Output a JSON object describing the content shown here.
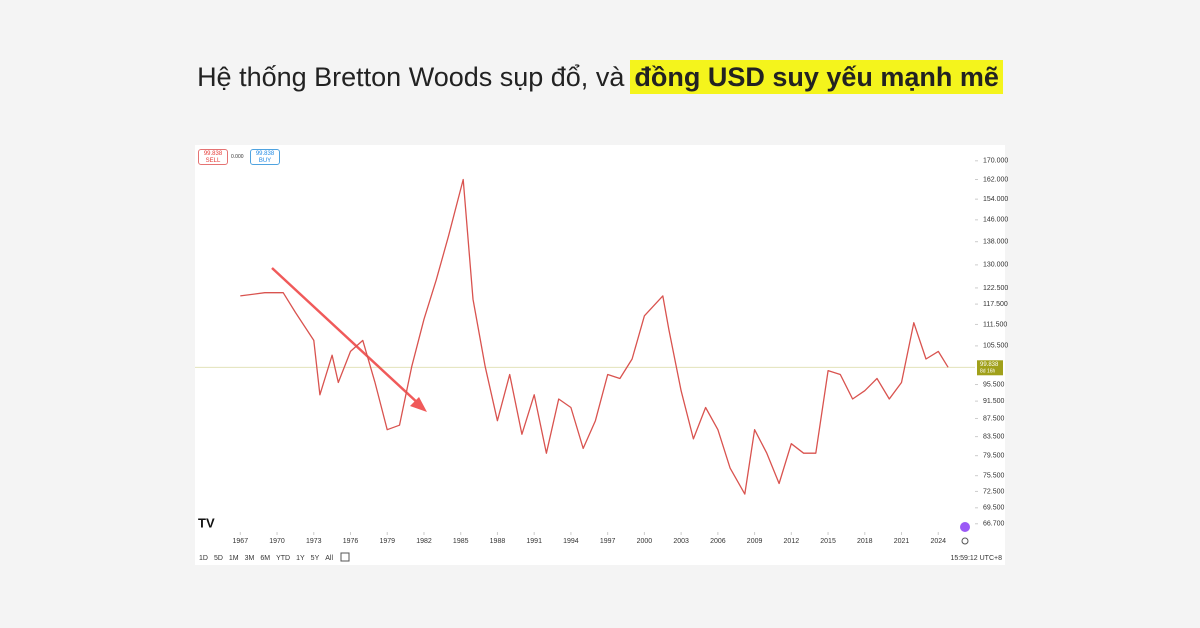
{
  "chart_data": {
    "type": "line",
    "title": "Hệ thống Bretton Woods sụp đổ, và",
    "title_highlight": "đồng USD suy yếu mạnh mẽ",
    "log_scale": true,
    "x": [
      1967,
      1969,
      1970.5,
      1971.5,
      1973,
      1973.5,
      1974.5,
      1975,
      1976,
      1977,
      1978,
      1979,
      1980,
      1981,
      1982,
      1983,
      1984,
      1985.2,
      1986,
      1987,
      1988,
      1989,
      1990,
      1991,
      1992,
      1993,
      1994,
      1995,
      1996,
      1997,
      1998,
      1999,
      2000,
      2001.5,
      2002,
      2003,
      2004,
      2005,
      2006,
      2007,
      2008.2,
      2009,
      2010,
      2011,
      2012,
      2013,
      2014,
      2015,
      2016,
      2017,
      2018,
      2019,
      2020,
      2021,
      2022,
      2023,
      2024,
      2024.8
    ],
    "series": [
      {
        "color": "#d9534f",
        "values": [
          120,
          121,
          121,
          115,
          107,
          93,
          103,
          96,
          104,
          107,
          96,
          85,
          86,
          100,
          113,
          125,
          140,
          162,
          119,
          100,
          87,
          98,
          84,
          93,
          80,
          92,
          90,
          81,
          87,
          98,
          97,
          102,
          114,
          120,
          110,
          94,
          83,
          90,
          85,
          77,
          72,
          85,
          80,
          74,
          82,
          80,
          80,
          99,
          98,
          92,
          94,
          97,
          92,
          96,
          112,
          102,
          104,
          99.838
        ]
      }
    ],
    "xlim": [
      1963.3,
      2027
    ],
    "xticks": [
      1967,
      1970,
      1973,
      1976,
      1979,
      1982,
      1985,
      1988,
      1991,
      1994,
      1997,
      2000,
      2003,
      2006,
      2009,
      2012,
      2015,
      2018,
      2021,
      2024
    ],
    "ylim": [
      65.3,
      174.8
    ],
    "yticks": [
      {
        "value": 66.7,
        "label": "66.700"
      },
      {
        "value": 69.5,
        "label": "69.500"
      },
      {
        "value": 72.5,
        "label": "72.500"
      },
      {
        "value": 75.5,
        "label": "75.500"
      },
      {
        "value": 79.5,
        "label": "79.500"
      },
      {
        "value": 83.5,
        "label": "83.500"
      },
      {
        "value": 87.5,
        "label": "87.500"
      },
      {
        "value": 91.5,
        "label": "91.500"
      },
      {
        "value": 95.5,
        "label": "95.500"
      },
      {
        "value": 105.5,
        "label": "105.500"
      },
      {
        "value": 111.5,
        "label": "111.500"
      },
      {
        "value": 117.5,
        "label": "117.500"
      },
      {
        "value": 122.5,
        "label": "122.500"
      },
      {
        "value": 130,
        "label": "130.000"
      },
      {
        "value": 138,
        "label": "138.000"
      },
      {
        "value": 146,
        "label": "146.000"
      },
      {
        "value": 154,
        "label": "154.000"
      },
      {
        "value": 162,
        "label": "162.000"
      },
      {
        "value": 170,
        "label": "170.000"
      }
    ],
    "last_value": 99.838,
    "last_color": "#a0a01a",
    "countdown": "8d 16h",
    "sell": {
      "price": 99.838,
      "label": "SELL"
    },
    "spread": "0.000",
    "buy": {
      "price": 99.838,
      "label": "BUY"
    },
    "ranges": [
      "1D",
      "5D",
      "1M",
      "3M",
      "6M",
      "YTD",
      "1Y",
      "5Y",
      "All"
    ],
    "clock": "15:59:12 UTC+8"
  }
}
